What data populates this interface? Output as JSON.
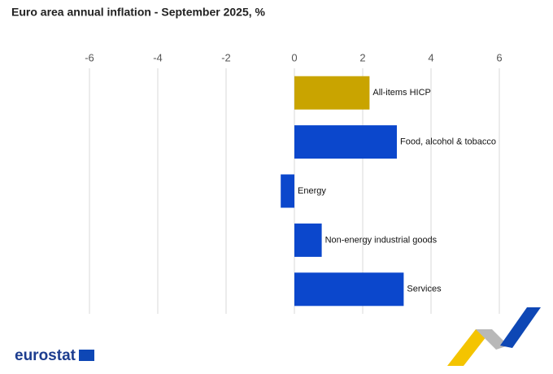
{
  "chart_data": {
    "type": "hbar",
    "title": "Euro area annual inflation - September 2025, %",
    "categories": [
      "All-items HICP",
      "Food, alcohol & tobacco",
      "Energy",
      "Non-energy industrial goods",
      "Services"
    ],
    "values": [
      2.2,
      3.0,
      -0.4,
      0.8,
      3.2
    ],
    "colors": [
      "#c9a400",
      "#0b47cc",
      "#0b47cc",
      "#0b47cc",
      "#0b47cc"
    ],
    "xlim": [
      -6,
      6
    ],
    "xticks": [
      -6,
      -4,
      -2,
      0,
      2,
      4,
      6
    ],
    "grid": true
  },
  "logo": "eurostat"
}
